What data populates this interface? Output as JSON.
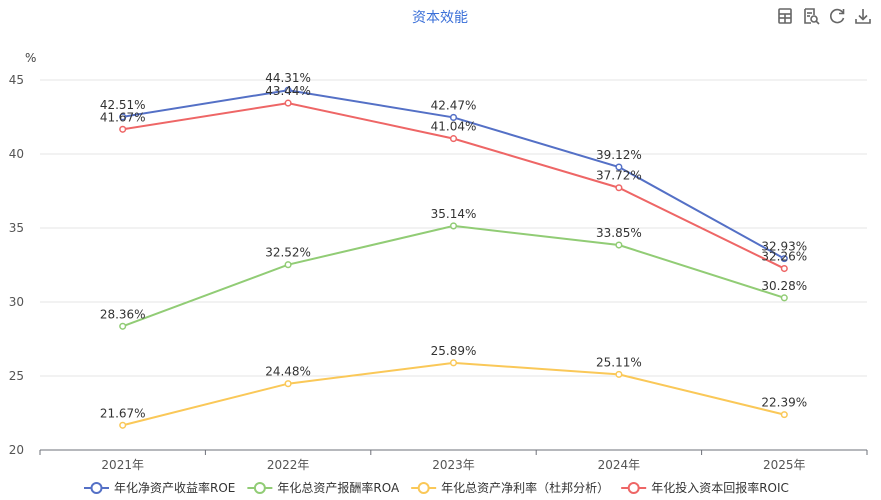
{
  "toolbar": {
    "icons": [
      "table-view-icon",
      "data-zoom-icon",
      "refresh-icon",
      "download-icon"
    ]
  },
  "chart_data": {
    "type": "line",
    "title": "资本效能",
    "xlabel": "",
    "ylabel": "%",
    "ylim": [
      20,
      45
    ],
    "yticks": [
      20,
      25,
      30,
      35,
      40,
      45
    ],
    "grid": true,
    "legend_position": "bottom",
    "categories": [
      "2021年",
      "2022年",
      "2023年",
      "2024年",
      "2025年"
    ],
    "series": [
      {
        "name": "年化净资产收益率ROE",
        "color": "#5470c6",
        "values": [
          42.51,
          44.31,
          42.47,
          39.12,
          32.93
        ],
        "labels": [
          "42.51%",
          "44.31%",
          "42.47%",
          "39.12%",
          "32.93%"
        ]
      },
      {
        "name": "年化总资产报酬率ROA",
        "color": "#91cc75",
        "values": [
          28.36,
          32.52,
          35.14,
          33.85,
          30.28
        ],
        "labels": [
          "28.36%",
          "32.52%",
          "35.14%",
          "33.85%",
          "30.28%"
        ]
      },
      {
        "name": "年化总资产净利率（杜邦分析）",
        "color": "#fac858",
        "values": [
          21.67,
          24.48,
          25.89,
          25.11,
          22.39
        ],
        "labels": [
          "21.67%",
          "24.48%",
          "25.89%",
          "25.11%",
          "22.39%"
        ]
      },
      {
        "name": "年化投入资本回报率ROIC",
        "color": "#ee6666",
        "values": [
          41.67,
          43.44,
          41.04,
          37.72,
          32.26
        ],
        "labels": [
          "41.67%",
          "43.44%",
          "41.04%",
          "37.72%",
          "32.26%"
        ]
      }
    ]
  }
}
